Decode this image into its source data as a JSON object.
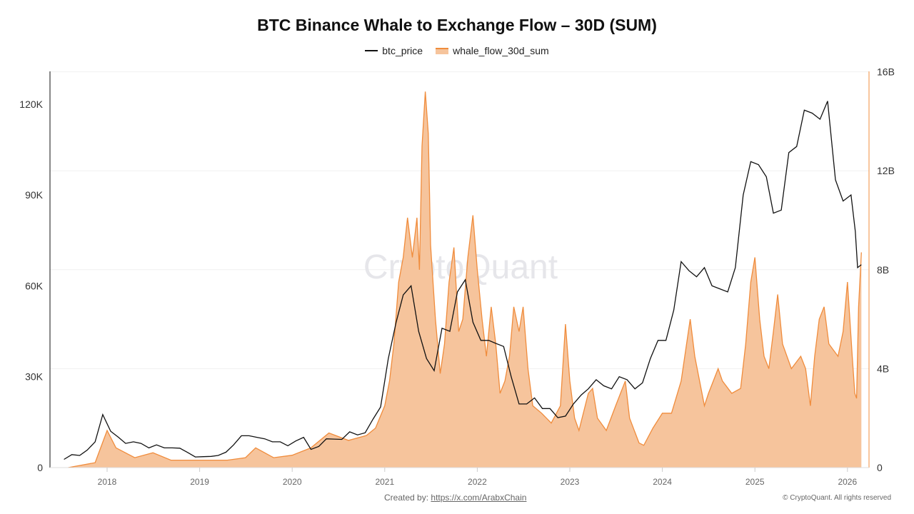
{
  "chart_data": {
    "type": "line+area",
    "title": "BTC Binance Whale to Exchange Flow – 30D (SUM)",
    "legend_position": "top",
    "grid": true,
    "x_ticks": [
      "2018",
      "2019",
      "2020",
      "2021",
      "2022",
      "2023",
      "2024",
      "2025",
      "2026"
    ],
    "y_left": {
      "ticks": [
        "0",
        "30K",
        "60K",
        "90K",
        "120K"
      ],
      "range": [
        0,
        130000
      ]
    },
    "y_right": {
      "ticks": [
        "0",
        "4B",
        "8B",
        "12B",
        "16B"
      ],
      "range": [
        0,
        16000000000
      ]
    },
    "watermark": "CryptoQuant",
    "colors": {
      "btc_price": "#111111",
      "whale_line": "#f08c3c",
      "whale_fill": "#f6c49c"
    },
    "series": [
      {
        "name": "btc_price",
        "type": "line",
        "axis": "left",
        "unit": "USD (thousands)",
        "points": [
          [
            "2017-07-15",
            2.7
          ],
          [
            "2017-08-15",
            4.3
          ],
          [
            "2017-09-15",
            4.0
          ],
          [
            "2017-10-15",
            5.8
          ],
          [
            "2017-11-15",
            8.5
          ],
          [
            "2017-12-15",
            17.5
          ],
          [
            "2018-01-15",
            12
          ],
          [
            "2018-02-15",
            10
          ],
          [
            "2018-03-15",
            8
          ],
          [
            "2018-04-15",
            8.5
          ],
          [
            "2018-05-15",
            8
          ],
          [
            "2018-06-15",
            6.5
          ],
          [
            "2018-07-15",
            7.5
          ],
          [
            "2018-08-15",
            6.5
          ],
          [
            "2018-09-15",
            6.5
          ],
          [
            "2018-10-15",
            6.4
          ],
          [
            "2018-11-15",
            5
          ],
          [
            "2018-12-15",
            3.5
          ],
          [
            "2019-01-15",
            3.6
          ],
          [
            "2019-02-15",
            3.7
          ],
          [
            "2019-03-15",
            4
          ],
          [
            "2019-04-15",
            5.1
          ],
          [
            "2019-05-15",
            7.5
          ],
          [
            "2019-06-15",
            10.5
          ],
          [
            "2019-07-15",
            10.5
          ],
          [
            "2019-08-15",
            10
          ],
          [
            "2019-09-15",
            9.5
          ],
          [
            "2019-10-15",
            8.5
          ],
          [
            "2019-11-15",
            8.5
          ],
          [
            "2019-12-15",
            7.2
          ],
          [
            "2020-01-15",
            8.8
          ],
          [
            "2020-02-15",
            10
          ],
          [
            "2020-03-15",
            6
          ],
          [
            "2020-04-15",
            7
          ],
          [
            "2020-05-15",
            9.5
          ],
          [
            "2020-06-15",
            9.4
          ],
          [
            "2020-07-15",
            9.3
          ],
          [
            "2020-08-15",
            11.8
          ],
          [
            "2020-09-15",
            10.8
          ],
          [
            "2020-10-15",
            11.5
          ],
          [
            "2020-11-15",
            16
          ],
          [
            "2020-12-15",
            20
          ],
          [
            "2021-01-15",
            36
          ],
          [
            "2021-02-15",
            48
          ],
          [
            "2021-03-15",
            57
          ],
          [
            "2021-04-15",
            60
          ],
          [
            "2021-05-15",
            45
          ],
          [
            "2021-06-15",
            36
          ],
          [
            "2021-07-15",
            32
          ],
          [
            "2021-08-15",
            46
          ],
          [
            "2021-09-15",
            45
          ],
          [
            "2021-10-15",
            58
          ],
          [
            "2021-11-15",
            62
          ],
          [
            "2021-12-15",
            48
          ],
          [
            "2022-01-15",
            42
          ],
          [
            "2022-02-15",
            42
          ],
          [
            "2022-03-15",
            41
          ],
          [
            "2022-04-15",
            40
          ],
          [
            "2022-05-15",
            30
          ],
          [
            "2022-06-15",
            21
          ],
          [
            "2022-07-15",
            21
          ],
          [
            "2022-08-15",
            23
          ],
          [
            "2022-09-15",
            19.5
          ],
          [
            "2022-10-15",
            19.5
          ],
          [
            "2022-11-15",
            16.5
          ],
          [
            "2022-12-15",
            17
          ],
          [
            "2023-01-15",
            21
          ],
          [
            "2023-02-15",
            24
          ],
          [
            "2023-03-15",
            26
          ],
          [
            "2023-04-15",
            29
          ],
          [
            "2023-05-15",
            27
          ],
          [
            "2023-06-15",
            26
          ],
          [
            "2023-07-15",
            30
          ],
          [
            "2023-08-15",
            29
          ],
          [
            "2023-09-15",
            26
          ],
          [
            "2023-10-15",
            28
          ],
          [
            "2023-11-15",
            36
          ],
          [
            "2023-12-15",
            42
          ],
          [
            "2024-01-15",
            42
          ],
          [
            "2024-02-15",
            52
          ],
          [
            "2024-03-15",
            68
          ],
          [
            "2024-04-15",
            65
          ],
          [
            "2024-05-15",
            63
          ],
          [
            "2024-06-15",
            66
          ],
          [
            "2024-07-15",
            60
          ],
          [
            "2024-08-15",
            59
          ],
          [
            "2024-09-15",
            58
          ],
          [
            "2024-10-15",
            66
          ],
          [
            "2024-11-15",
            90
          ],
          [
            "2024-12-15",
            101
          ],
          [
            "2025-01-15",
            100
          ],
          [
            "2025-02-15",
            96
          ],
          [
            "2025-03-15",
            84
          ],
          [
            "2025-04-15",
            85
          ],
          [
            "2025-05-15",
            104
          ],
          [
            "2025-06-15",
            106
          ],
          [
            "2025-07-15",
            118
          ],
          [
            "2025-08-15",
            117
          ],
          [
            "2025-09-15",
            115
          ],
          [
            "2025-10-15",
            121
          ],
          [
            "2025-11-15",
            95
          ],
          [
            "2025-12-15",
            88
          ],
          [
            "2026-01-15",
            90
          ],
          [
            "2026-02-01",
            78
          ],
          [
            "2026-02-10",
            66
          ],
          [
            "2026-02-25",
            67
          ]
        ]
      },
      {
        "name": "whale_flow_30d_sum",
        "type": "area",
        "axis": "right",
        "unit": "USD (billions)",
        "points": [
          [
            "2017-08-01",
            0
          ],
          [
            "2017-11-15",
            0.2
          ],
          [
            "2018-01-01",
            1.5
          ],
          [
            "2018-02-05",
            0.8
          ],
          [
            "2018-04-20",
            0.4
          ],
          [
            "2018-07-01",
            0.6
          ],
          [
            "2018-09-10",
            0.3
          ],
          [
            "2019-01-01",
            0.3
          ],
          [
            "2019-04-20",
            0.3
          ],
          [
            "2019-07-01",
            0.4
          ],
          [
            "2019-08-10",
            0.8
          ],
          [
            "2019-10-20",
            0.4
          ],
          [
            "2020-01-01",
            0.5
          ],
          [
            "2020-03-15",
            0.8
          ],
          [
            "2020-05-25",
            1.4
          ],
          [
            "2020-08-10",
            1.1
          ],
          [
            "2020-10-20",
            1.3
          ],
          [
            "2020-11-25",
            1.6
          ],
          [
            "2021-01-01",
            2.5
          ],
          [
            "2021-01-20",
            3.5
          ],
          [
            "2021-02-06",
            5
          ],
          [
            "2021-02-25",
            7.5
          ],
          [
            "2021-03-15",
            8.5
          ],
          [
            "2021-04-01",
            10.1
          ],
          [
            "2021-04-20",
            8.5
          ],
          [
            "2021-05-08",
            10.1
          ],
          [
            "2021-05-18",
            8
          ],
          [
            "2021-05-28",
            13
          ],
          [
            "2021-06-10",
            15.2
          ],
          [
            "2021-06-22",
            13.5
          ],
          [
            "2021-07-01",
            9
          ],
          [
            "2021-07-20",
            6
          ],
          [
            "2021-08-08",
            3.8
          ],
          [
            "2021-08-25",
            5
          ],
          [
            "2021-09-12",
            7.5
          ],
          [
            "2021-10-01",
            8.9
          ],
          [
            "2021-10-20",
            5.5
          ],
          [
            "2021-11-05",
            6
          ],
          [
            "2021-11-25",
            8.5
          ],
          [
            "2021-12-15",
            10.2
          ],
          [
            "2022-01-01",
            8
          ],
          [
            "2022-01-20",
            6
          ],
          [
            "2022-02-06",
            4.5
          ],
          [
            "2022-02-25",
            6.5
          ],
          [
            "2022-03-15",
            5
          ],
          [
            "2022-04-01",
            3
          ],
          [
            "2022-04-20",
            3.5
          ],
          [
            "2022-05-08",
            4.5
          ],
          [
            "2022-05-25",
            6.5
          ],
          [
            "2022-06-15",
            5.5
          ],
          [
            "2022-07-01",
            6.5
          ],
          [
            "2022-07-20",
            4
          ],
          [
            "2022-08-08",
            2.5
          ],
          [
            "2022-09-12",
            2.2
          ],
          [
            "2022-10-20",
            1.8
          ],
          [
            "2022-11-25",
            2.5
          ],
          [
            "2022-12-15",
            5.8
          ],
          [
            "2023-01-01",
            3.5
          ],
          [
            "2023-01-20",
            2
          ],
          [
            "2023-02-06",
            1.5
          ],
          [
            "2023-03-15",
            3
          ],
          [
            "2023-04-01",
            3.2
          ],
          [
            "2023-04-20",
            2
          ],
          [
            "2023-05-25",
            1.5
          ],
          [
            "2023-07-01",
            2.5
          ],
          [
            "2023-08-08",
            3.5
          ],
          [
            "2023-08-25",
            2
          ],
          [
            "2023-10-01",
            1
          ],
          [
            "2023-10-20",
            0.9
          ],
          [
            "2023-11-25",
            1.6
          ],
          [
            "2024-01-01",
            2.2
          ],
          [
            "2024-02-06",
            2.2
          ],
          [
            "2024-03-15",
            3.5
          ],
          [
            "2024-04-20",
            6
          ],
          [
            "2024-05-08",
            4.5
          ],
          [
            "2024-06-15",
            2.5
          ],
          [
            "2024-07-01",
            3
          ],
          [
            "2024-08-08",
            4
          ],
          [
            "2024-08-25",
            3.5
          ],
          [
            "2024-10-01",
            3
          ],
          [
            "2024-11-05",
            3.2
          ],
          [
            "2024-11-25",
            5
          ],
          [
            "2024-12-15",
            7.5
          ],
          [
            "2025-01-01",
            8.5
          ],
          [
            "2025-01-20",
            6
          ],
          [
            "2025-02-06",
            4.5
          ],
          [
            "2025-02-25",
            4
          ],
          [
            "2025-03-15",
            5.5
          ],
          [
            "2025-04-01",
            7
          ],
          [
            "2025-04-20",
            5
          ],
          [
            "2025-05-25",
            4
          ],
          [
            "2025-07-01",
            4.5
          ],
          [
            "2025-07-20",
            4
          ],
          [
            "2025-08-08",
            2.5
          ],
          [
            "2025-08-25",
            4.5
          ],
          [
            "2025-09-12",
            6
          ],
          [
            "2025-10-01",
            6.5
          ],
          [
            "2025-10-20",
            5
          ],
          [
            "2025-11-25",
            4.5
          ],
          [
            "2025-12-15",
            5.5
          ],
          [
            "2026-01-01",
            7.5
          ],
          [
            "2026-01-20",
            4.5
          ],
          [
            "2026-01-30",
            3
          ],
          [
            "2026-02-06",
            2.8
          ],
          [
            "2026-02-14",
            6.5
          ],
          [
            "2026-02-25",
            8.7
          ]
        ]
      }
    ]
  },
  "legend": {
    "btc_price": "btc_price",
    "whale": "whale_flow_30d_sum"
  },
  "footer": {
    "created_by": "Created by:",
    "link": "https://x.com/ArabxChain",
    "copyright": "© CryptoQuant. All rights reserved"
  }
}
